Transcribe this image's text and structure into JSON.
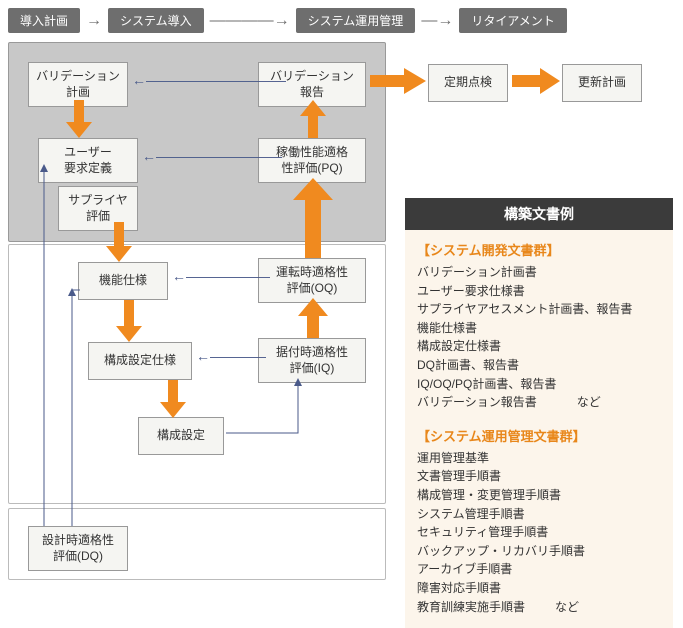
{
  "colors": {
    "phase_bg": "#6e6e6e",
    "phase_fg": "#ffffff",
    "orange": "#f08a1f",
    "blue_arrow": "#4a5a8a",
    "box_bg": "#f5f5f2",
    "box_border": "#999999",
    "gray_panel": "#c8c8c8",
    "side_header_bg": "#3b3b3b",
    "side_body_bg": "#fcf5eb",
    "side_title": "#e8871b"
  },
  "phases": {
    "p1": "導入計画",
    "p2": "システム導入",
    "p3": "システム運用管理",
    "p4": "リタイアメント"
  },
  "nodes": {
    "validation_plan": "バリデーション\n計画",
    "validation_report": "バリデーション\n報告",
    "periodic_check": "定期点検",
    "update_plan": "更新計画",
    "user_req": "ユーザー\n要求定義",
    "supplier_eval": "サプライヤ\n評価",
    "pq": "稼働性能適格\n性評価(PQ)",
    "func_spec": "機能仕様",
    "oq": "運転時適格性\n評価(OQ)",
    "cfg_spec": "構成設定仕様",
    "iq": "据付時適格性\n評価(IQ)",
    "cfg": "構成設定",
    "dq": "設計時適格性\n評価(DQ)"
  },
  "side": {
    "header": "構築文書例",
    "group1_title": "【システム開発文書群】",
    "group1_items": [
      "バリデーション計画書",
      "ユーザー要求仕様書",
      "サプライヤアセスメント計画書、報告書",
      "機能仕様書",
      "構成設定仕様書",
      "DQ計画書、報告書",
      "IQ/OQ/PQ計画書、報告書"
    ],
    "group1_last": "バリデーション報告書",
    "group1_etc": "など",
    "group2_title": "【システム運用管理文書群】",
    "group2_items": [
      "運用管理基準",
      "文書管理手順書",
      "構成管理・変更管理手順書",
      "システム管理手順書",
      "セキュリティ管理手順書",
      "バックアップ・リカバリ手順書",
      "アーカイブ手順書",
      "障害対応手順書"
    ],
    "group2_last": "教育訓練実施手順書",
    "group2_etc": "など"
  }
}
